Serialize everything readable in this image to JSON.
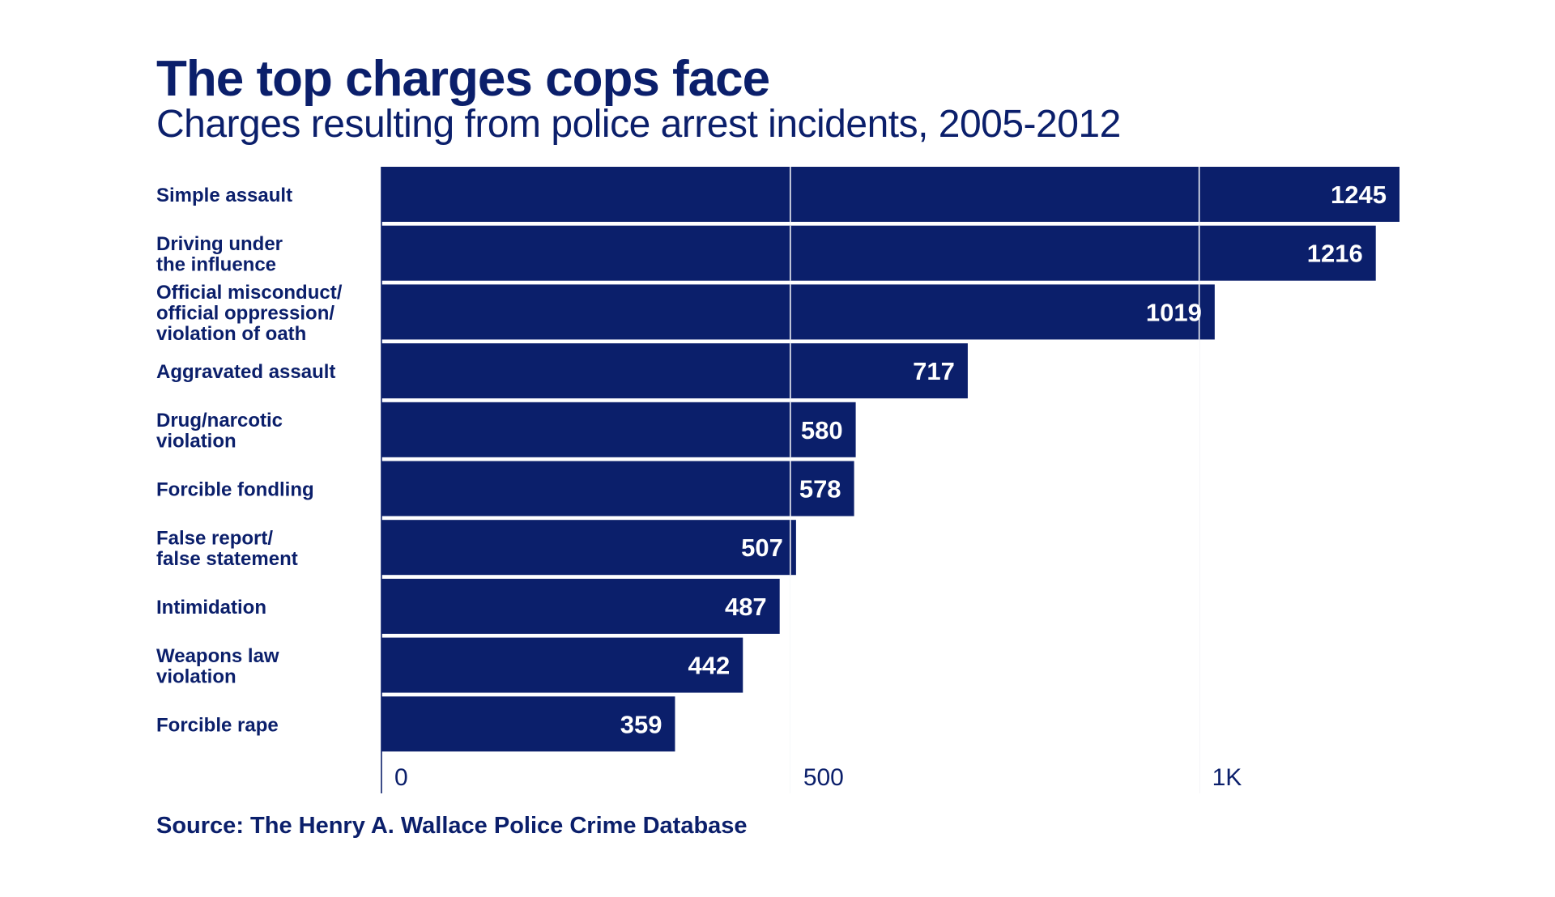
{
  "title": "The top charges cops face",
  "subtitle": "Charges resulting from police arrest incidents, 2005-2012",
  "source": "Source: The Henry A. Wallace Police Crime Database",
  "colors": {
    "bar": "#0b1f6b",
    "text": "#0b1f6b",
    "value_label": "#ffffff",
    "grid": "#0b1f6b"
  },
  "chart_data": {
    "type": "bar",
    "orientation": "horizontal",
    "categories": [
      [
        "Simple assault"
      ],
      [
        "Driving under",
        "the influence"
      ],
      [
        "Official misconduct/",
        "official oppression/",
        "violation of oath"
      ],
      [
        "Aggravated assault"
      ],
      [
        "Drug/narcotic",
        "violation"
      ],
      [
        "Forcible fondling"
      ],
      [
        "False report/",
        "false statement"
      ],
      [
        "Intimidation"
      ],
      [
        "Weapons law",
        "violation"
      ],
      [
        "Forcible rape"
      ]
    ],
    "values": [
      1245,
      1216,
      1019,
      717,
      580,
      578,
      507,
      487,
      442,
      359
    ],
    "value_labels": [
      "1245",
      "1216",
      "1019",
      "717",
      "580",
      "578",
      "507",
      "487",
      "442",
      "359"
    ],
    "xlim": [
      0,
      1245
    ],
    "xticks": [
      0,
      500,
      1000
    ],
    "xtick_labels": [
      "0",
      "500",
      "1K"
    ],
    "grid": true,
    "xlabel": "",
    "ylabel": ""
  }
}
